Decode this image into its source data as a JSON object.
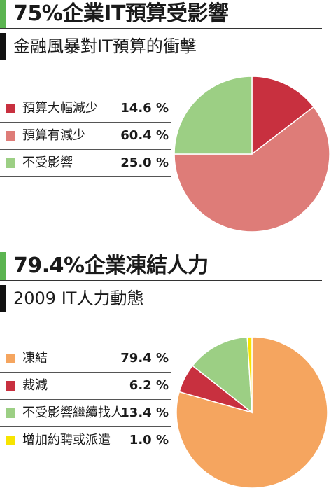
{
  "charts": [
    {
      "title": "75%企業IT預算受影響",
      "subtitle": "金融風暴對IT預算的衝擊",
      "legend": [
        {
          "label": "預算大幅減少",
          "value": "14.6 %"
        },
        {
          "label": "預算有減少",
          "value": "60.4 %"
        },
        {
          "label": "不受影響",
          "value": "25.0 %"
        }
      ]
    },
    {
      "title": "79.4%企業凍結人力",
      "subtitle": "2009 IT人力動態",
      "legend": [
        {
          "label": "凍結",
          "value": "79.4 %"
        },
        {
          "label": "裁減",
          "value": "6.2 %"
        },
        {
          "label": "不受影響繼續找人",
          "value": "13.4 %"
        },
        {
          "label": "增加約聘或派遣",
          "value": "1.0 %"
        }
      ]
    }
  ],
  "chart_data": [
    {
      "type": "pie",
      "title": "75%企業IT預算受影響",
      "subtitle": "金融風暴對IT預算的衝擊",
      "categories": [
        "預算大幅減少",
        "預算有減少",
        "不受影響"
      ],
      "values": [
        14.6,
        60.4,
        25.0
      ],
      "colors": [
        "#c8303f",
        "#de7c78",
        "#9ccf84"
      ]
    },
    {
      "type": "pie",
      "title": "79.4%企業凍結人力",
      "subtitle": "2009 IT人力動態",
      "categories": [
        "凍結",
        "裁減",
        "不受影響繼續找人",
        "增加約聘或派遣"
      ],
      "values": [
        79.4,
        6.2,
        13.4,
        1.0
      ],
      "colors": [
        "#f5a55f",
        "#c8303f",
        "#9ccf84",
        "#f7e400"
      ]
    }
  ],
  "colors": {
    "title_bar": "#5bb450",
    "subtitle_bar": "#111111"
  }
}
